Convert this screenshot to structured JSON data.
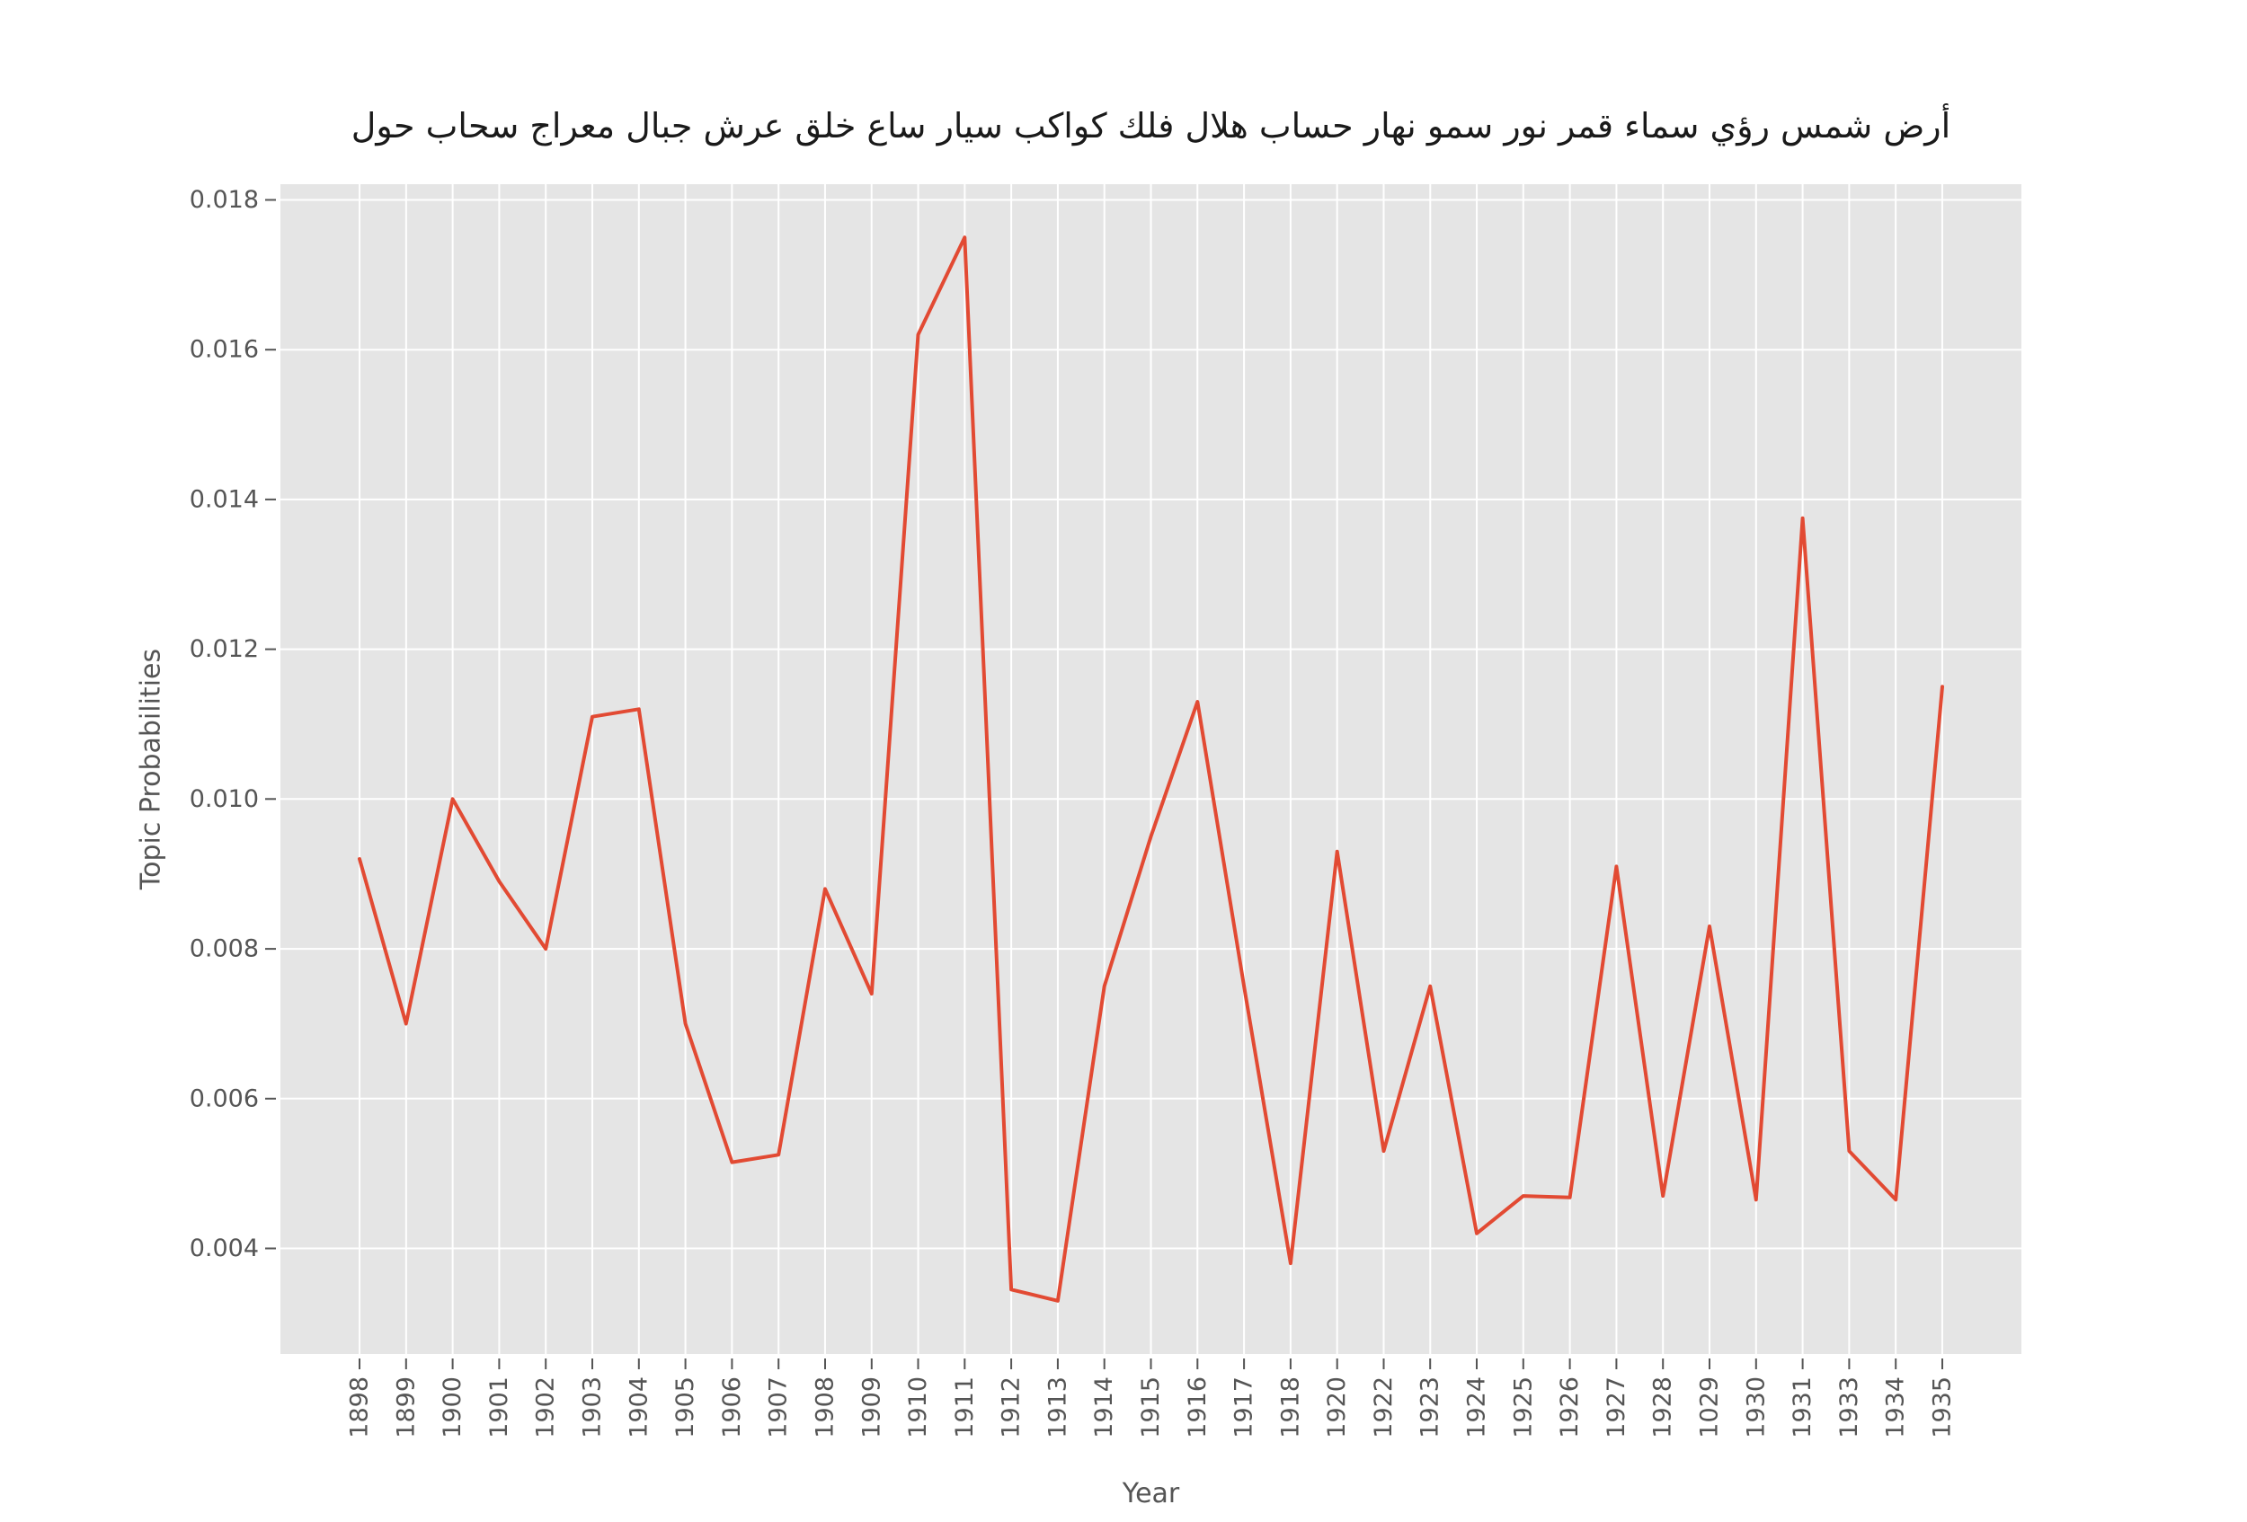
{
  "title": "أرض شمس رؤي سماء قمر نور سمو نهار حساب هلال فلك كواكب سيار ساع خلق عرش جبال معراج سحاب حول",
  "axes": {
    "xlabel": "Year",
    "ylabel": "Topic Probabilities"
  },
  "colors": {
    "line": "#E24A33",
    "plot_bg": "#E5E5E5",
    "grid": "#FFFFFF",
    "tick": "#555555",
    "text": "#555555",
    "title_text": "#1a1a1a",
    "fig_bg": "#FFFFFF"
  },
  "chart_data": {
    "type": "line",
    "title": "أرض شمس رؤي سماء قمر نور سمو نهار حساب هلال فلك كواكب سيار ساع خلق عرش جبال معراج سحاب حول",
    "xlabel": "Year",
    "ylabel": "Topic Probabilities",
    "categories": [
      "1898",
      "1899",
      "1900",
      "1901",
      "1902",
      "1903",
      "1904",
      "1905",
      "1906",
      "1907",
      "1908",
      "1909",
      "1910",
      "1911",
      "1912",
      "1913",
      "1914",
      "1915",
      "1916",
      "1917",
      "1918",
      "1920",
      "1922",
      "1923",
      "1924",
      "1925",
      "1926",
      "1927",
      "1928",
      "1029",
      "1930",
      "1931",
      "1933",
      "1934",
      "1935"
    ],
    "values": [
      0.0092,
      0.007,
      0.01,
      0.0089,
      0.008,
      0.0111,
      0.0112,
      0.007,
      0.00515,
      0.00525,
      0.0088,
      0.0074,
      0.0162,
      0.0175,
      0.00345,
      0.0033,
      0.0075,
      0.0095,
      0.0113,
      0.0075,
      0.0038,
      0.0093,
      0.0053,
      0.0075,
      0.0042,
      0.0047,
      0.00468,
      0.0091,
      0.0047,
      0.0083,
      0.00465,
      0.01375,
      0.0053,
      0.00465,
      0.0115
    ],
    "yticks": [
      0.004,
      0.006,
      0.008,
      0.01,
      0.012,
      0.014,
      0.016,
      0.018
    ],
    "ylim": [
      0.00259,
      0.01821
    ],
    "x_margin_categories": 1.7,
    "grid": true,
    "legend": false
  }
}
